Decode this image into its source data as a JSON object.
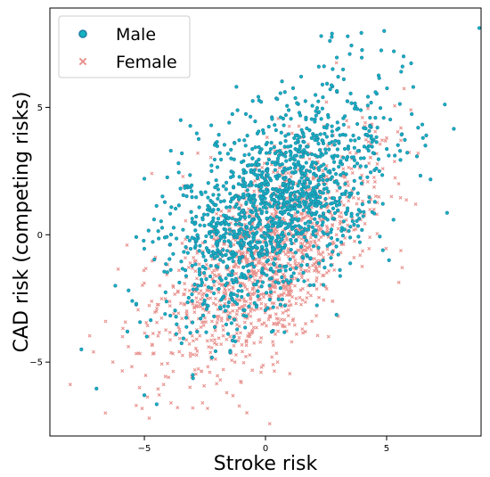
{
  "chart_data": {
    "type": "scatter",
    "title": "",
    "xlabel": "Stroke risk",
    "ylabel": "CAD risk (competing risks)",
    "xlim": [
      -8.9,
      8.9
    ],
    "ylim": [
      -7.9,
      8.9
    ],
    "xticks": [
      -5,
      0,
      5
    ],
    "yticks": [
      -5,
      0,
      5
    ],
    "grid": false,
    "legend_position": "top-left",
    "series": [
      {
        "name": "Male",
        "marker": "circle",
        "color": "#1f7fa6",
        "fill": "#14b3c0",
        "center": [
          0.5,
          1.2
        ],
        "spread": [
          2.2,
          2.2
        ],
        "correlation": 0.55,
        "count": 1500,
        "points": [
          [
            -7.6,
            -4.5
          ],
          [
            -5.0,
            -6.3
          ],
          [
            -5.0,
            2.2
          ],
          [
            -6.2,
            -2.0
          ],
          [
            -5.7,
            -3.8
          ],
          [
            4.9,
            8.0
          ],
          [
            5.3,
            7.2
          ],
          [
            5.6,
            6.4
          ],
          [
            5.7,
            7.0
          ],
          [
            6.1,
            5.8
          ],
          [
            6.3,
            4.2
          ],
          [
            6.6,
            3.5
          ],
          [
            6.5,
            3.8
          ],
          [
            5.1,
            -1.0
          ],
          [
            2.3,
            7.8
          ],
          [
            2.2,
            6.6
          ],
          [
            3.0,
            6.2
          ],
          [
            4.2,
            3.4
          ],
          [
            -3.5,
            4.5
          ],
          [
            -4.9,
            -4.0
          ],
          [
            -3.0,
            -5.5
          ],
          [
            -4.6,
            0.6
          ],
          [
            -5.5,
            -2.6
          ],
          [
            0.8,
            5.6
          ],
          [
            -1.5,
            4.4
          ]
        ]
      },
      {
        "name": "Female",
        "marker": "x",
        "color": "#e8928e",
        "fill": "#e8928e",
        "center": [
          0.0,
          -1.0
        ],
        "spread": [
          2.2,
          2.2
        ],
        "correlation": 0.6,
        "count": 1300,
        "points": [
          [
            -4.8,
            -7.2
          ],
          [
            -3.0,
            -6.8
          ],
          [
            -4.0,
            -5.6
          ],
          [
            -7.1,
            -4.6
          ],
          [
            -6.6,
            -3.4
          ],
          [
            -5.9,
            -4.0
          ],
          [
            -6.3,
            -5.0
          ],
          [
            -5.2,
            -6.0
          ],
          [
            -1.6,
            -6.2
          ],
          [
            -2.3,
            -5.4
          ],
          [
            6.0,
            4.9
          ],
          [
            6.3,
            3.2
          ],
          [
            5.2,
            1.5
          ],
          [
            4.6,
            0.8
          ],
          [
            4.0,
            4.6
          ],
          [
            5.5,
            2.0
          ],
          [
            3.0,
            -3.2
          ],
          [
            2.6,
            -4.0
          ],
          [
            0.5,
            -5.0
          ],
          [
            -1.0,
            -5.8
          ],
          [
            -3.9,
            -6.6
          ],
          [
            -2.6,
            -6.6
          ],
          [
            6.2,
            1.2
          ],
          [
            5.0,
            3.8
          ],
          [
            -4.5,
            -3.0
          ]
        ]
      }
    ]
  }
}
